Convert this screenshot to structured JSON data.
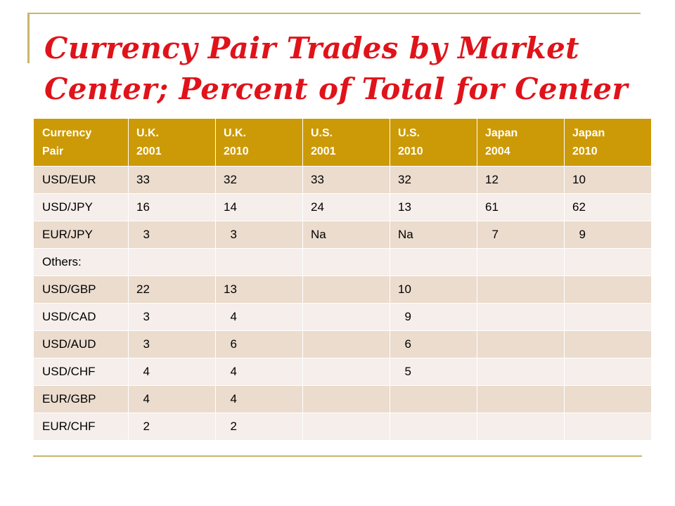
{
  "title": "Currency Pair Trades by Market Center; Percent of Total for Center",
  "table": {
    "headers": [
      "Currency\nPair",
      "U.K.\n2001",
      "U.K.\n2010",
      "U.S.\n2001",
      "U.S.\n2010",
      "Japan\n2004",
      "Japan\n2010"
    ],
    "rows": [
      [
        "USD/EUR",
        "33",
        "32",
        "33",
        "32",
        "12",
        "10"
      ],
      [
        "USD/JPY",
        "16",
        "14",
        "24",
        "13",
        "61",
        "62"
      ],
      [
        "EUR/JPY",
        "  3",
        "  3",
        "Na",
        "Na",
        "  7",
        "  9"
      ],
      [
        "Others:",
        "",
        "",
        "",
        "",
        "",
        ""
      ],
      [
        "USD/GBP",
        "22",
        "13",
        "",
        "10",
        "",
        ""
      ],
      [
        "USD/CAD",
        "  3",
        "  4",
        "",
        "  9",
        "",
        ""
      ],
      [
        "USD/AUD",
        "  3",
        "  6",
        "",
        "  6",
        "",
        ""
      ],
      [
        "USD/CHF",
        "  4",
        "  4",
        "",
        "  5",
        "",
        ""
      ],
      [
        "EUR/GBP",
        "  4",
        "  4",
        "",
        "",
        "",
        ""
      ],
      [
        "EUR/CHF",
        "  2",
        "  2",
        "",
        "",
        "",
        ""
      ]
    ]
  }
}
